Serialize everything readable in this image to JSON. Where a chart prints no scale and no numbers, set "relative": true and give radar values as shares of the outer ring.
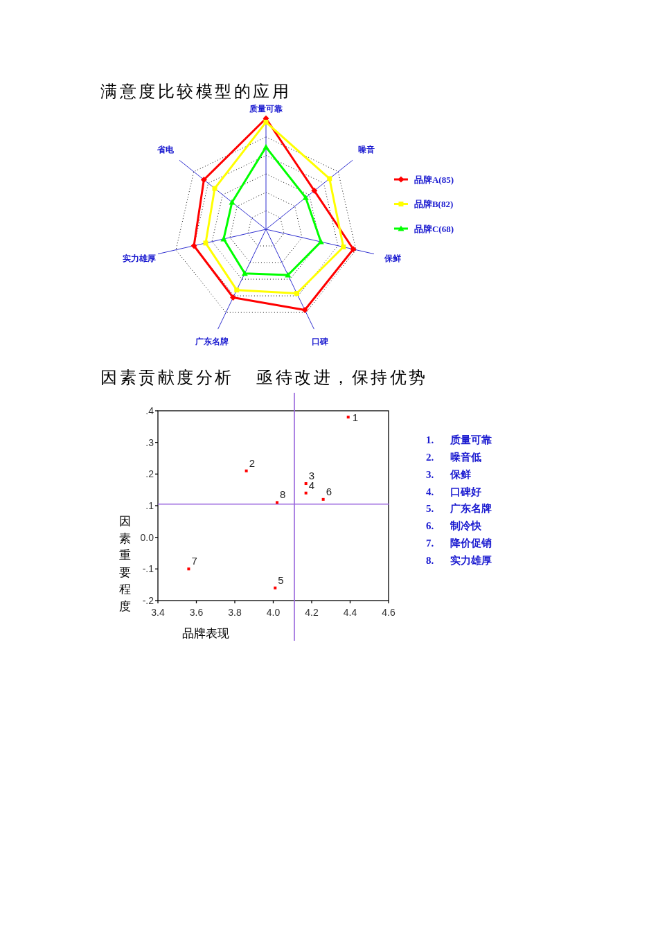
{
  "chart_data": [
    {
      "type": "radar",
      "title": "满意度比较模型的应用",
      "categories": [
        "质量可靠",
        "噪音",
        "保鲜",
        "口碑",
        "广东名牌",
        "实力雄厚",
        "省电"
      ],
      "relative": true,
      "grid": true,
      "legend": "right",
      "series": [
        {
          "name": "品牌A(85)",
          "color": "#ff0000",
          "marker": "diamond",
          "values": [
            1.2,
            0.67,
            0.97,
            0.97,
            0.82,
            0.8,
            0.86
          ]
        },
        {
          "name": "品牌B(82)",
          "color": "#ffff00",
          "marker": "square",
          "values": [
            1.16,
            0.88,
            0.86,
            0.77,
            0.73,
            0.67,
            0.71
          ]
        },
        {
          "name": "品牌C(68)",
          "color": "#00ff00",
          "marker": "triangle",
          "values": [
            0.89,
            0.55,
            0.61,
            0.55,
            0.53,
            0.47,
            0.47
          ]
        }
      ]
    },
    {
      "type": "scatter",
      "title": "因素贡献度分析",
      "subtitle": "亟待改进，保持优势",
      "xlabel": "品牌表现",
      "ylabel": "因素重要程度",
      "xlim": [
        3.4,
        4.6
      ],
      "ylim": [
        -0.2,
        0.4
      ],
      "xticks": [
        3.4,
        3.6,
        3.8,
        {
          "value": 4,
          "label": "4.0"
        },
        4.2,
        4.4,
        4.6
      ],
      "yticks": [
        {
          "value": -0.2,
          "label": "-.2"
        },
        {
          "value": -0.1,
          "label": "-.1"
        },
        {
          "value": 0,
          "label": "0.0"
        },
        {
          "value": 0.1,
          "label": ".1"
        },
        {
          "value": 0.2,
          "label": ".2"
        },
        {
          "value": 0.3,
          "label": ".3"
        },
        {
          "value": 0.4,
          "label": ".4"
        }
      ],
      "marker": "square",
      "series": [
        {
          "color": "#ff0000",
          "x": [
            4.39,
            3.86,
            4.17,
            4.17,
            4.01,
            4.26,
            3.56,
            4.02
          ],
          "values": [
            0.38,
            0.21,
            0.17,
            0.14,
            -0.16,
            0.12,
            -0.1,
            0.11
          ]
        }
      ],
      "ref_lines": [
        {
          "axis": "x",
          "value": 4.11,
          "color": "#9966dd"
        },
        {
          "axis": "y",
          "value": 0.105,
          "color": "#9966dd"
        }
      ],
      "annotations": [
        {
          "text": "1",
          "x": 4.39,
          "y": 0.38
        },
        {
          "text": "2",
          "x": 3.86,
          "y": 0.21
        },
        {
          "text": "3",
          "x": 4.17,
          "y": 0.17
        },
        {
          "text": "4",
          "x": 4.17,
          "y": 0.14
        },
        {
          "text": "5",
          "x": 4.01,
          "y": -0.16
        },
        {
          "text": "6",
          "x": 4.26,
          "y": 0.12
        },
        {
          "text": "7",
          "x": 3.56,
          "y": -0.1
        },
        {
          "text": "8",
          "x": 4.02,
          "y": 0.11
        },
        "1. 质量可靠",
        "2. 噪音低",
        "3. 保鲜",
        "4. 口碑好",
        "5. 广东名牌",
        "6. 制冷快",
        "7. 降价促销",
        "8. 实力雄厚"
      ]
    }
  ]
}
